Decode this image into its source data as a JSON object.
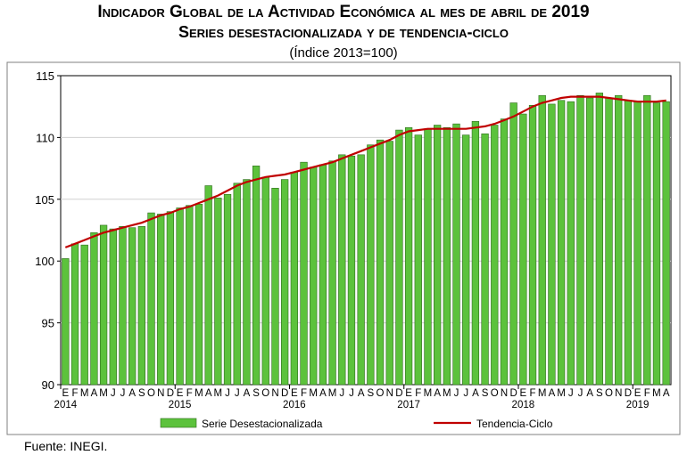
{
  "chart_data": {
    "type": "bar",
    "title": "Indicador Global de la Actividad Económica al mes de abril de 2019",
    "subtitle": "Series desestacionalizada y de tendencia-ciclo",
    "note": "(Índice 2013=100)",
    "source": "Fuente: INEGI.",
    "ylim": [
      90,
      115
    ],
    "yticks": [
      "90",
      "95",
      "100",
      "105",
      "110",
      "115"
    ],
    "categories": [
      "E",
      "F",
      "M",
      "A",
      "M",
      "J",
      "J",
      "A",
      "S",
      "O",
      "N",
      "D",
      "E",
      "F",
      "M",
      "A",
      "M",
      "J",
      "J",
      "A",
      "S",
      "O",
      "N",
      "D",
      "E",
      "F",
      "M",
      "A",
      "M",
      "J",
      "J",
      "A",
      "S",
      "O",
      "N",
      "D",
      "E",
      "F",
      "M",
      "A",
      "M",
      "J",
      "J",
      "A",
      "S",
      "O",
      "N",
      "D",
      "E",
      "F",
      "M",
      "A",
      "M",
      "J",
      "J",
      "A",
      "S",
      "O",
      "N",
      "D",
      "E",
      "F",
      "M",
      "A"
    ],
    "years": [
      {
        "label": "2014",
        "index": 0
      },
      {
        "label": "2015",
        "index": 12
      },
      {
        "label": "2016",
        "index": 24
      },
      {
        "label": "2017",
        "index": 36
      },
      {
        "label": "2018",
        "index": 48
      },
      {
        "label": "2019",
        "index": 60
      }
    ],
    "series": [
      {
        "name": "Serie Desestacionalizada",
        "type": "bar",
        "color": "#5cc23c",
        "values": [
          100.2,
          101.4,
          101.3,
          102.3,
          102.9,
          102.6,
          102.8,
          102.7,
          102.8,
          103.9,
          103.8,
          104.0,
          104.3,
          104.5,
          104.6,
          106.1,
          105.1,
          105.4,
          106.3,
          106.6,
          107.7,
          106.8,
          105.9,
          106.6,
          107.2,
          108.0,
          107.6,
          107.8,
          108.1,
          108.6,
          108.5,
          108.6,
          109.4,
          109.8,
          109.7,
          110.6,
          110.8,
          110.2,
          110.7,
          111.0,
          110.8,
          111.1,
          110.2,
          111.3,
          110.3,
          111.0,
          111.5,
          112.8,
          111.9,
          112.6,
          113.4,
          112.7,
          113.0,
          112.9,
          113.4,
          113.2,
          113.6,
          113.2,
          113.4,
          113.0,
          112.9,
          113.4,
          112.8,
          112.9
        ]
      },
      {
        "name": "Tendencia-Ciclo",
        "type": "line",
        "color": "#c00000",
        "values": [
          101.1,
          101.4,
          101.7,
          102.0,
          102.3,
          102.5,
          102.7,
          102.9,
          103.1,
          103.4,
          103.7,
          103.9,
          104.2,
          104.4,
          104.7,
          105.0,
          105.3,
          105.7,
          106.1,
          106.4,
          106.6,
          106.8,
          106.9,
          107.0,
          107.2,
          107.4,
          107.6,
          107.8,
          108.0,
          108.3,
          108.6,
          108.9,
          109.2,
          109.5,
          109.8,
          110.2,
          110.5,
          110.6,
          110.7,
          110.7,
          110.7,
          110.7,
          110.7,
          110.8,
          110.9,
          111.1,
          111.4,
          111.7,
          112.1,
          112.5,
          112.8,
          113.0,
          113.2,
          113.3,
          113.3,
          113.3,
          113.3,
          113.2,
          113.1,
          113.0,
          112.9,
          112.9,
          112.9,
          113.0
        ]
      }
    ]
  }
}
